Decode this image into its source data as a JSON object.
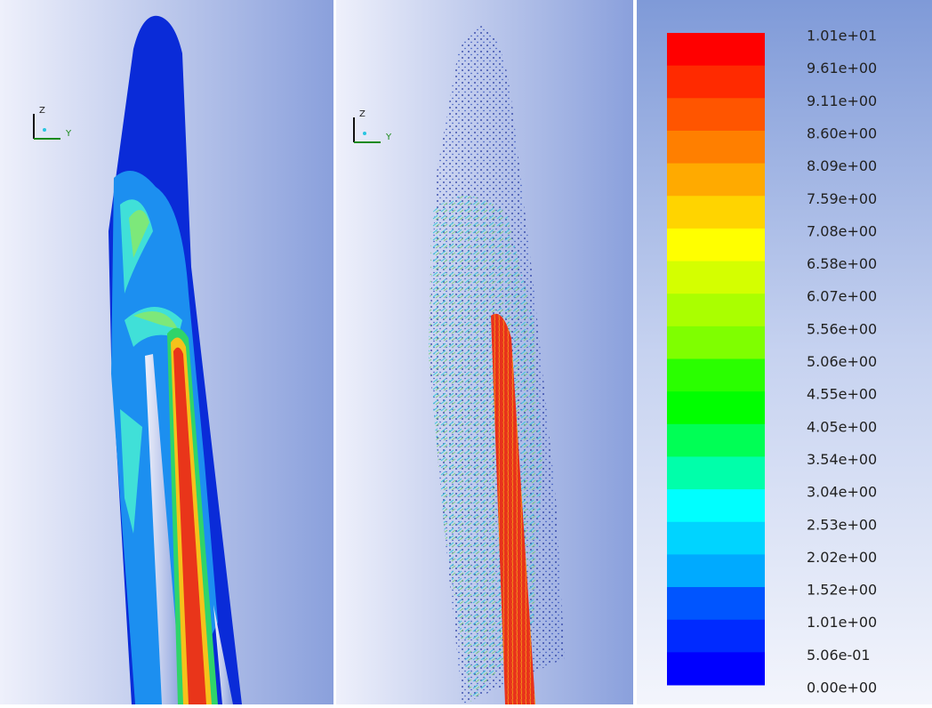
{
  "panels": [
    {
      "triad": {
        "z": "Z",
        "y": "Y"
      }
    },
    {
      "triad": {
        "z": "Z",
        "y": "Y"
      }
    }
  ],
  "legend": {
    "labels": [
      "1.01e+01",
      "9.61e+00",
      "9.11e+00",
      "8.60e+00",
      "8.09e+00",
      "7.59e+00",
      "7.08e+00",
      "6.58e+00",
      "6.07e+00",
      "5.56e+00",
      "5.06e+00",
      "4.55e+00",
      "4.05e+00",
      "3.54e+00",
      "3.04e+00",
      "2.53e+00",
      "2.02e+00",
      "1.52e+00",
      "1.01e+00",
      "5.06e-01",
      "0.00e+00"
    ]
  }
}
